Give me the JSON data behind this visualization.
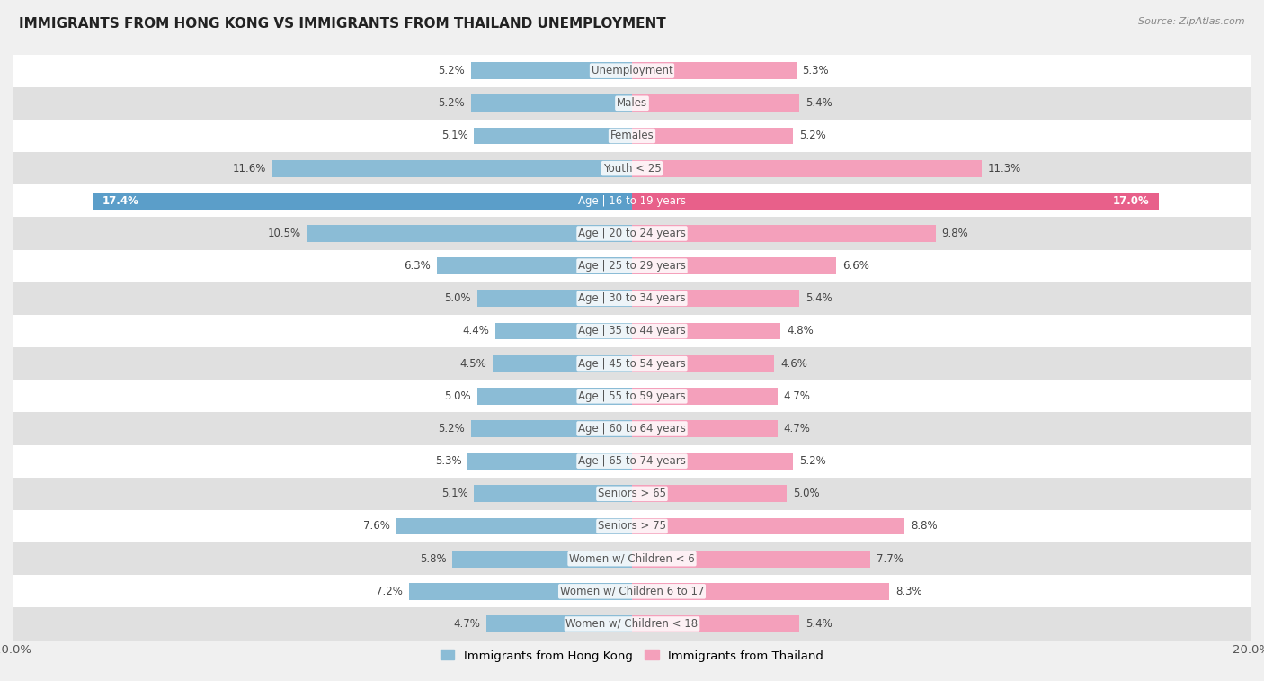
{
  "title": "IMMIGRANTS FROM HONG KONG VS IMMIGRANTS FROM THAILAND UNEMPLOYMENT",
  "source": "Source: ZipAtlas.com",
  "categories": [
    "Unemployment",
    "Males",
    "Females",
    "Youth < 25",
    "Age | 16 to 19 years",
    "Age | 20 to 24 years",
    "Age | 25 to 29 years",
    "Age | 30 to 34 years",
    "Age | 35 to 44 years",
    "Age | 45 to 54 years",
    "Age | 55 to 59 years",
    "Age | 60 to 64 years",
    "Age | 65 to 74 years",
    "Seniors > 65",
    "Seniors > 75",
    "Women w/ Children < 6",
    "Women w/ Children 6 to 17",
    "Women w/ Children < 18"
  ],
  "hong_kong": [
    5.2,
    5.2,
    5.1,
    11.6,
    17.4,
    10.5,
    6.3,
    5.0,
    4.4,
    4.5,
    5.0,
    5.2,
    5.3,
    5.1,
    7.6,
    5.8,
    7.2,
    4.7
  ],
  "thailand": [
    5.3,
    5.4,
    5.2,
    11.3,
    17.0,
    9.8,
    6.6,
    5.4,
    4.8,
    4.6,
    4.7,
    4.7,
    5.2,
    5.0,
    8.8,
    7.7,
    8.3,
    5.4
  ],
  "hk_color": "#8bbcd6",
  "th_color": "#f4a0bb",
  "hk_highlight_color": "#5b9ec9",
  "th_highlight_color": "#e8608a",
  "axis_max": 20.0,
  "legend_hk": "Immigrants from Hong Kong",
  "legend_th": "Immigrants from Thailand",
  "bg_color": "#f0f0f0",
  "row_color_light": "#ffffff",
  "row_color_dark": "#e0e0e0",
  "highlight_rows": [
    4
  ],
  "label_fontsize": 8.5,
  "title_fontsize": 11.0
}
